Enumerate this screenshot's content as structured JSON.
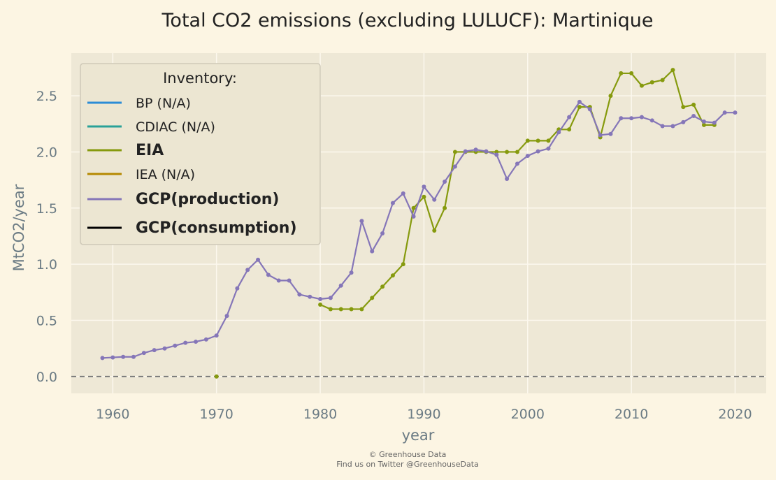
{
  "chart_data": {
    "type": "line",
    "title": "Total CO2 emissions (excluding LULUCF): Martinique",
    "xlabel": "year",
    "ylabel": "MtCO2/year",
    "xlim": [
      1956,
      2023
    ],
    "ylim": [
      -0.15,
      2.88
    ],
    "xticks": [
      1960,
      1970,
      1980,
      1990,
      2000,
      2010,
      2020
    ],
    "yticks": [
      0.0,
      0.5,
      1.0,
      1.5,
      2.0,
      2.5
    ],
    "ytick_labels": [
      "0.0",
      "0.5",
      "1.0",
      "1.5",
      "2.0",
      "2.5"
    ],
    "grid": true,
    "zero_line": {
      "style": "dashed",
      "color": "#7a7a7a",
      "value": 0
    },
    "legend": {
      "placement": "top-left",
      "title": "Inventory:",
      "entries": [
        {
          "label": "BP (N/A)",
          "color": "#2b8cd6",
          "bold": false
        },
        {
          "label": "CDIAC (N/A)",
          "color": "#2aa198",
          "bold": false
        },
        {
          "label": "EIA",
          "color": "#869a0e",
          "bold": true
        },
        {
          "label": "IEA (N/A)",
          "color": "#b58900",
          "bold": false
        },
        {
          "label": "GCP(production)",
          "color": "#8576b8",
          "bold": true
        },
        {
          "label": "GCP(consumption)",
          "color": "#000000",
          "bold": true
        }
      ]
    },
    "series": [
      {
        "name": "EIA",
        "color": "#869a0e",
        "segments": [
          {
            "x": [
              1970
            ],
            "y": [
              0.0
            ]
          },
          {
            "x": [
              1980,
              1981,
              1982,
              1983,
              1984,
              1985,
              1986,
              1987,
              1988,
              1989,
              1990,
              1991,
              1992,
              1993,
              1994,
              1995,
              1996,
              1997,
              1998,
              1999,
              2000,
              2001,
              2002,
              2003,
              2004,
              2005,
              2006,
              2007,
              2008,
              2009,
              2010,
              2011,
              2012,
              2013,
              2014,
              2015,
              2016,
              2017,
              2018
            ],
            "y": [
              0.64,
              0.6,
              0.6,
              0.6,
              0.6,
              0.7,
              0.8,
              0.9,
              1.0,
              1.5,
              1.6,
              1.3,
              1.5,
              2.0,
              2.0,
              2.0,
              2.0,
              2.0,
              2.0,
              2.0,
              2.1,
              2.1,
              2.1,
              2.2,
              2.2,
              2.4,
              2.4,
              2.13,
              2.5,
              2.7,
              2.7,
              2.59,
              2.62,
              2.64,
              2.73,
              2.4,
              2.42,
              2.24,
              2.24
            ]
          }
        ]
      },
      {
        "name": "GCP(production)",
        "color": "#8576b8",
        "segments": [
          {
            "x": [
              1959,
              1960,
              1961,
              1962,
              1963,
              1964,
              1965,
              1966,
              1967,
              1968,
              1969,
              1970,
              1971,
              1972,
              1973,
              1974,
              1975,
              1976,
              1977,
              1978,
              1979,
              1980,
              1981,
              1982,
              1983,
              1984,
              1985,
              1986,
              1987,
              1988,
              1989,
              1990,
              1991,
              1992,
              1993,
              1994,
              1995,
              1996,
              1997,
              1998,
              1999,
              2000,
              2001,
              2002,
              2003,
              2004,
              2005,
              2006,
              2007,
              2008,
              2009,
              2010,
              2011,
              2012,
              2013,
              2014,
              2015,
              2016,
              2017,
              2018,
              2019,
              2020
            ],
            "y": [
              0.165,
              0.17,
              0.175,
              0.175,
              0.21,
              0.235,
              0.25,
              0.275,
              0.3,
              0.31,
              0.33,
              0.365,
              0.54,
              0.785,
              0.95,
              1.04,
              0.905,
              0.855,
              0.855,
              0.73,
              0.71,
              0.69,
              0.7,
              0.81,
              0.925,
              1.385,
              1.115,
              1.275,
              1.545,
              1.63,
              1.425,
              1.69,
              1.575,
              1.735,
              1.87,
              2.005,
              2.02,
              2.005,
              1.975,
              1.76,
              1.895,
              1.965,
              2.005,
              2.03,
              2.175,
              2.31,
              2.445,
              2.38,
              2.15,
              2.16,
              2.3,
              2.3,
              2.31,
              2.28,
              2.23,
              2.23,
              2.265,
              2.32,
              2.27,
              2.26,
              2.35,
              2.35
            ]
          }
        ]
      }
    ]
  },
  "footer": {
    "line1": "© Greenhouse Data",
    "line2": "Find us on Twitter @GreenhouseData"
  },
  "colors": {
    "page_background": "#fcf5e3",
    "plot_background": "#eee8d6",
    "grid": "#fcf8ee",
    "legend_background": "#ece6d2",
    "legend_border": "#cfc9b8"
  }
}
